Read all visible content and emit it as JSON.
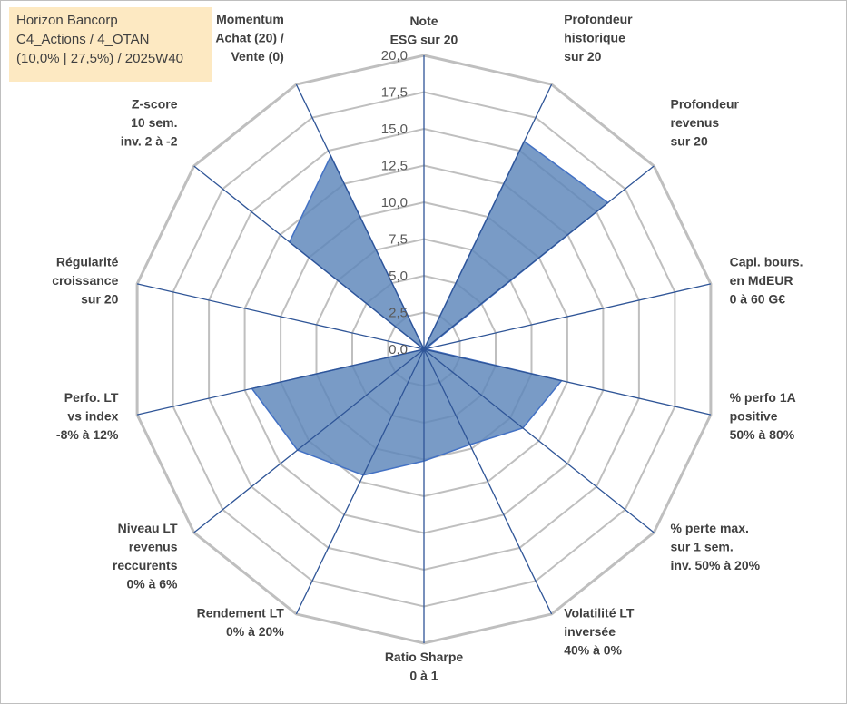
{
  "info": {
    "line1": "Horizon Bancorp",
    "line2": "C4_Actions / 4_OTAN",
    "line3": "(10,0% | 27,5%) / 2025W40"
  },
  "colors": {
    "fill": "#5b85b9",
    "outline": "#4472c4",
    "spokes": "#2f5597",
    "grid": "#bfbfbf",
    "info_box": "#fde9c2"
  },
  "chart_data": {
    "type": "radar",
    "rlim": [
      0,
      20
    ],
    "ticks": [
      "0,0",
      "2,5",
      "5,0",
      "7,5",
      "10,0",
      "12,5",
      "15,0",
      "17,5",
      "20,0"
    ],
    "grid": true,
    "axes": [
      [
        "Note",
        "ESG sur 20"
      ],
      [
        "Profondeur",
        "historique",
        "sur 20"
      ],
      [
        "Profondeur",
        "revenus",
        "sur 20"
      ],
      [
        "Capi. bours.",
        "en MdEUR",
        "0 à 60 G€"
      ],
      [
        "% perfo 1A",
        "positive",
        "50% à 80%"
      ],
      [
        "% perte max.",
        "sur 1 sem.",
        "inv. 50% à 20%"
      ],
      [
        "Volatilité LT",
        "inversée",
        "40% à 0%"
      ],
      [
        "Ratio Sharpe",
        "0 à 1"
      ],
      [
        "Rendement LT",
        "0% à 20%"
      ],
      [
        "Niveau LT",
        "revenus",
        "reccurents",
        "0% à 6%"
      ],
      [
        "Perfo. LT",
        "vs index",
        "-8% à 12%"
      ],
      [
        "Régularité",
        "croissance",
        "sur 20"
      ],
      [
        "Z-score",
        "10 sem.",
        "inv. 2 à -2"
      ],
      [
        "Momentum",
        "Achat (20) /",
        "Vente (0)"
      ]
    ],
    "values": [
      0,
      15.7,
      16.0,
      0.1,
      9.6,
      8.6,
      7.2,
      7.6,
      9.5,
      11.0,
      12.0,
      0,
      11.7,
      14.6
    ]
  }
}
